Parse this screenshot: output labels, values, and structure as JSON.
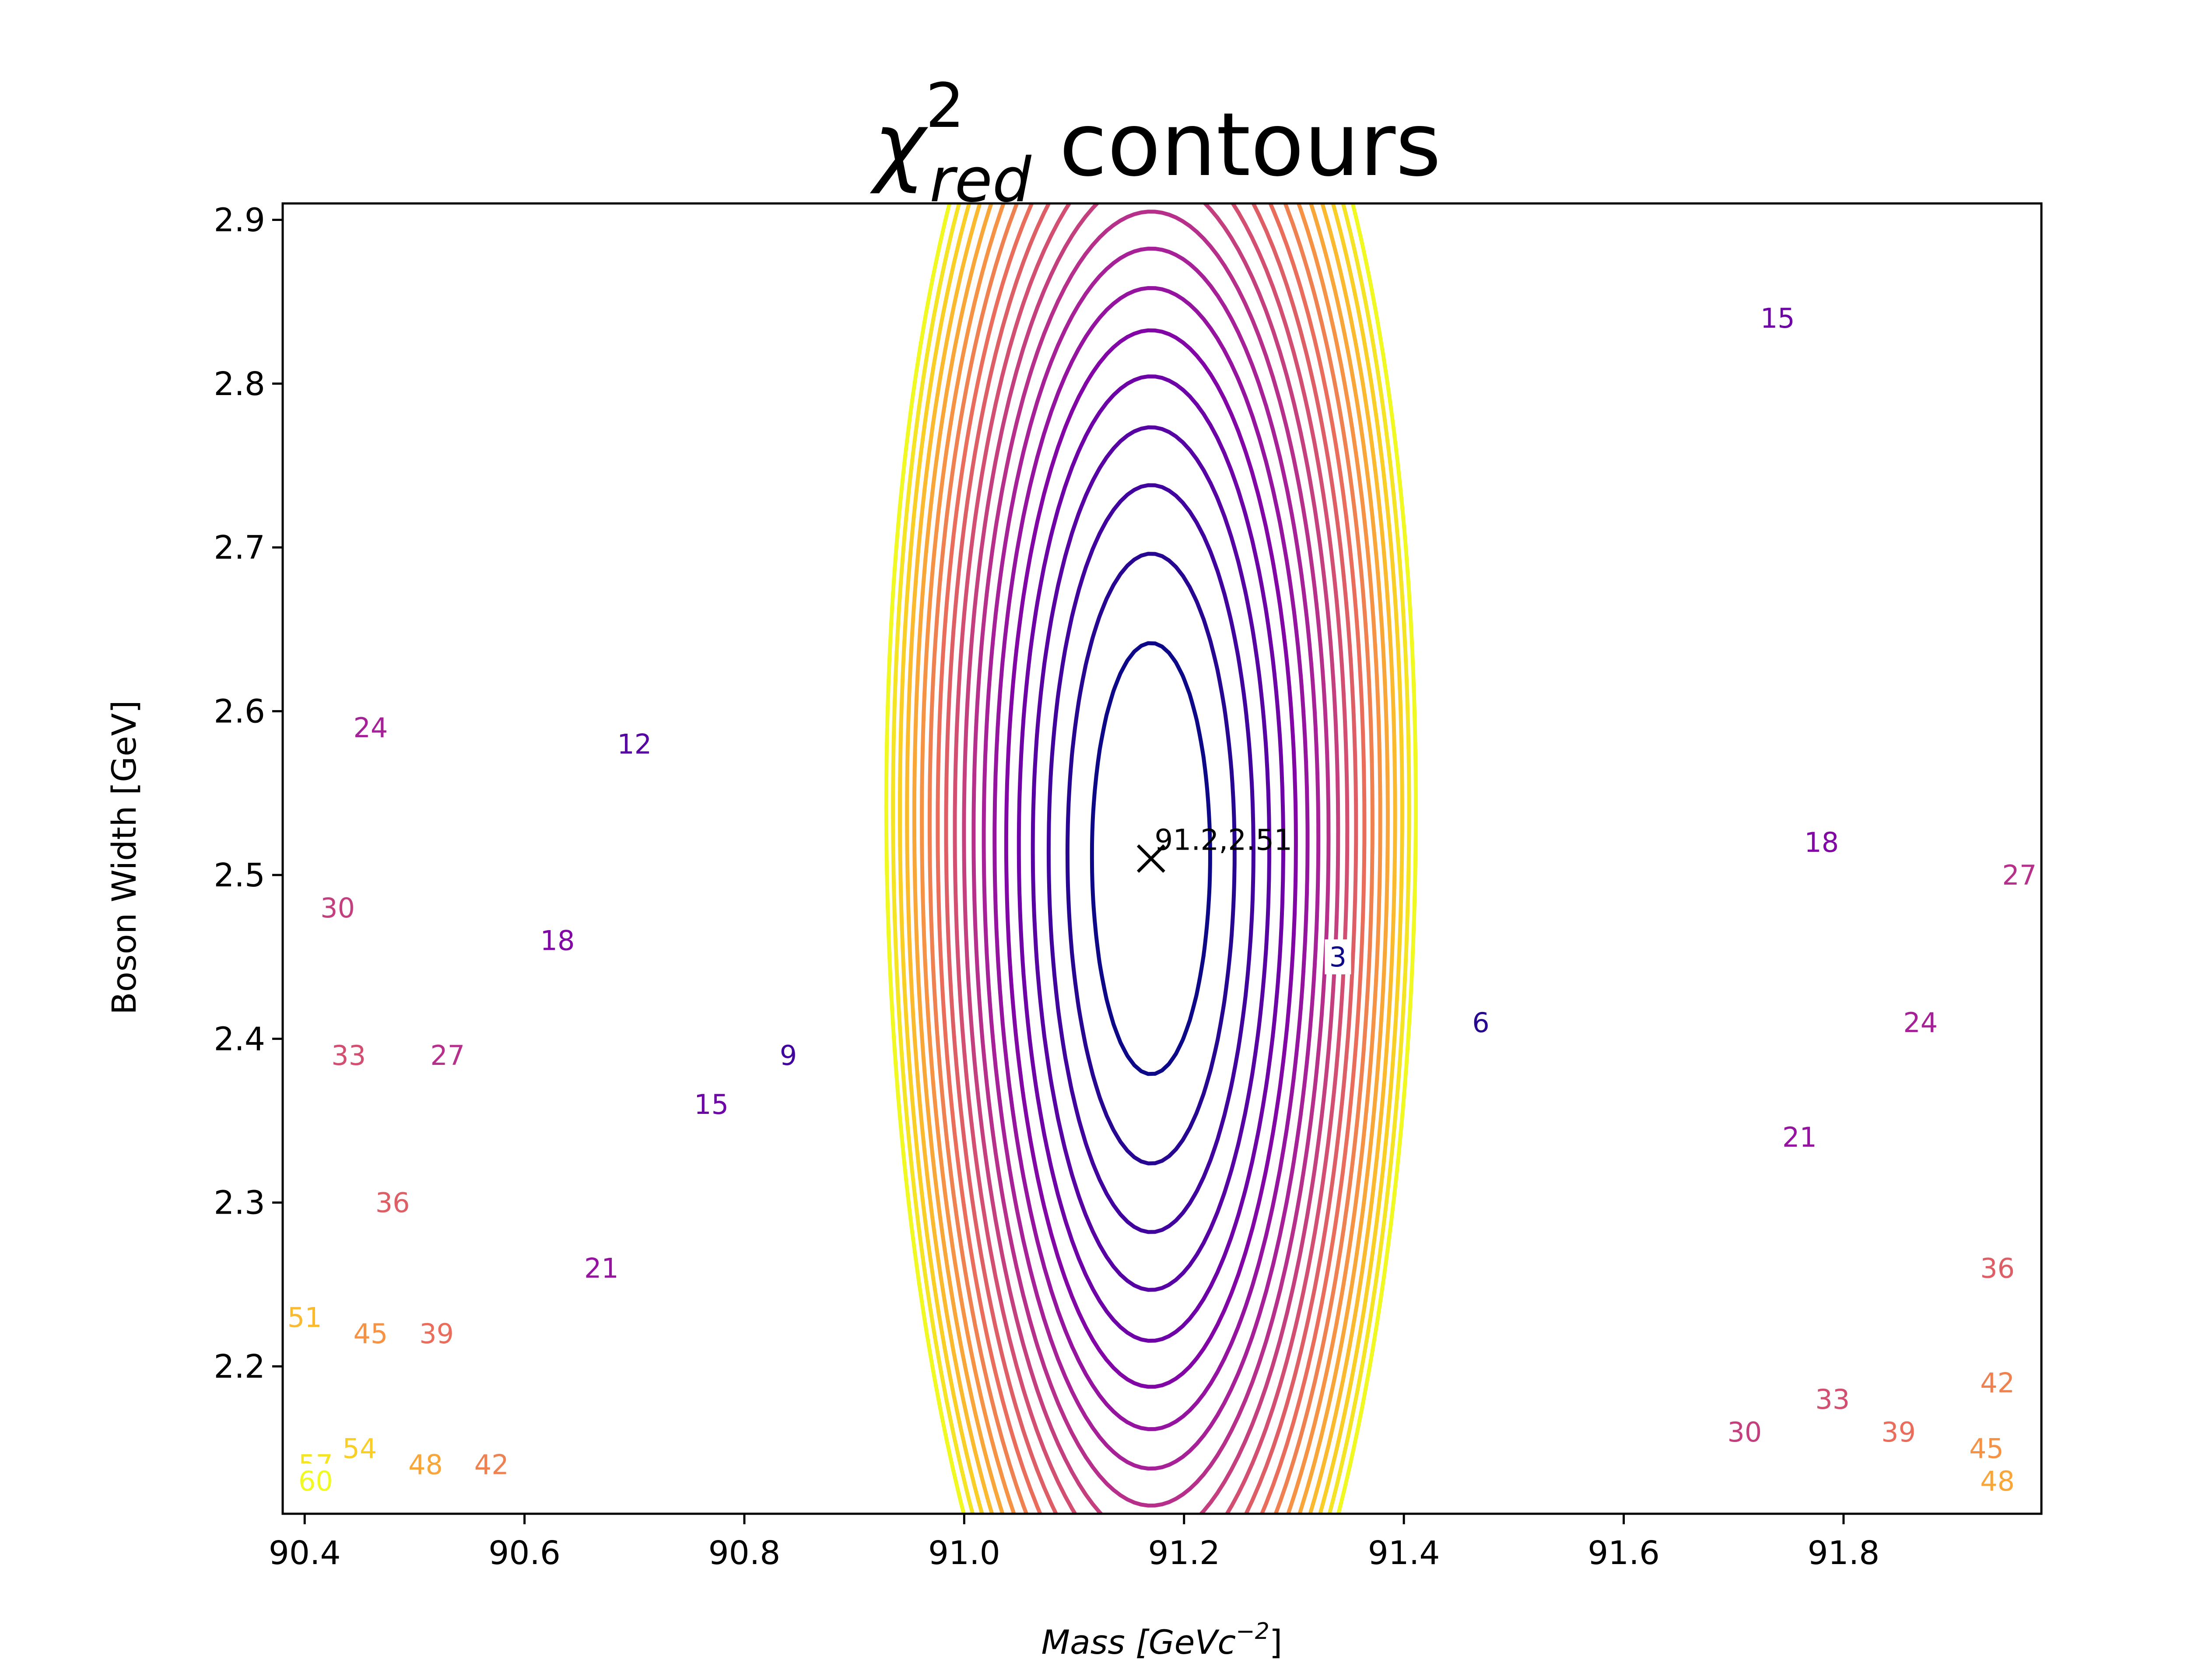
{
  "chart_data": {
    "type": "contour",
    "title_main": "χ",
    "title_sup": "2",
    "title_sub": "red",
    "title_rest": " contours",
    "xlabel_main": "Mass [GeVc",
    "xlabel_sup": "−2",
    "xlabel_end": "]",
    "ylabel": "Boson Width [GeV]",
    "xlim": [
      90.38,
      91.98
    ],
    "ylim": [
      2.11,
      2.91
    ],
    "xticks": [
      "90.4",
      "90.6",
      "90.8",
      "91.0",
      "91.2",
      "91.4",
      "91.6",
      "91.8"
    ],
    "yticks": [
      "2.2",
      "2.3",
      "2.4",
      "2.5",
      "2.6",
      "2.7",
      "2.8",
      "2.9"
    ],
    "levels": [
      3,
      6,
      9,
      12,
      15,
      18,
      21,
      24,
      27,
      30,
      33,
      36,
      39,
      42,
      45,
      48,
      51,
      54,
      57,
      60
    ],
    "colormap": "plasma",
    "minimum": {
      "x": 91.17,
      "y": 2.51,
      "label": "91.2,2.51"
    },
    "contour_labels": [
      {
        "text": "3",
        "x": 91.34,
        "y": 2.45,
        "level": 3
      },
      {
        "text": "6",
        "x": 91.47,
        "y": 2.41,
        "level": 6
      },
      {
        "text": "9",
        "x": 90.84,
        "y": 2.39,
        "level": 9
      },
      {
        "text": "12",
        "x": 90.7,
        "y": 2.58,
        "level": 12
      },
      {
        "text": "15",
        "x": 91.74,
        "y": 2.84,
        "level": 15
      },
      {
        "text": "15",
        "x": 90.77,
        "y": 2.36,
        "level": 15
      },
      {
        "text": "18",
        "x": 91.78,
        "y": 2.52,
        "level": 18
      },
      {
        "text": "18",
        "x": 90.63,
        "y": 2.46,
        "level": 18
      },
      {
        "text": "21",
        "x": 91.76,
        "y": 2.34,
        "level": 21
      },
      {
        "text": "21",
        "x": 90.67,
        "y": 2.26,
        "level": 21
      },
      {
        "text": "24",
        "x": 91.87,
        "y": 2.41,
        "level": 24
      },
      {
        "text": "24",
        "x": 90.46,
        "y": 2.59,
        "level": 24
      },
      {
        "text": "27",
        "x": 91.96,
        "y": 2.5,
        "level": 27
      },
      {
        "text": "27",
        "x": 90.53,
        "y": 2.39,
        "level": 27
      },
      {
        "text": "30",
        "x": 91.71,
        "y": 2.16,
        "level": 30
      },
      {
        "text": "30",
        "x": 90.43,
        "y": 2.48,
        "level": 30
      },
      {
        "text": "33",
        "x": 91.79,
        "y": 2.18,
        "level": 33
      },
      {
        "text": "33",
        "x": 90.44,
        "y": 2.39,
        "level": 33
      },
      {
        "text": "36",
        "x": 91.94,
        "y": 2.26,
        "level": 36
      },
      {
        "text": "36",
        "x": 90.48,
        "y": 2.3,
        "level": 36
      },
      {
        "text": "39",
        "x": 91.85,
        "y": 2.16,
        "level": 39
      },
      {
        "text": "39",
        "x": 90.52,
        "y": 2.22,
        "level": 39
      },
      {
        "text": "42",
        "x": 91.94,
        "y": 2.19,
        "level": 42
      },
      {
        "text": "42",
        "x": 90.57,
        "y": 2.14,
        "level": 42
      },
      {
        "text": "45",
        "x": 91.93,
        "y": 2.15,
        "level": 45
      },
      {
        "text": "45",
        "x": 90.46,
        "y": 2.22,
        "level": 45
      },
      {
        "text": "48",
        "x": 91.94,
        "y": 2.13,
        "level": 48
      },
      {
        "text": "48",
        "x": 90.51,
        "y": 2.14,
        "level": 48
      },
      {
        "text": "51",
        "x": 90.4,
        "y": 2.23,
        "level": 51
      },
      {
        "text": "54",
        "x": 90.45,
        "y": 2.15,
        "level": 54
      },
      {
        "text": "57",
        "x": 90.41,
        "y": 2.14,
        "level": 57
      },
      {
        "text": "60",
        "x": 90.41,
        "y": 2.13,
        "level": 60
      }
    ]
  }
}
